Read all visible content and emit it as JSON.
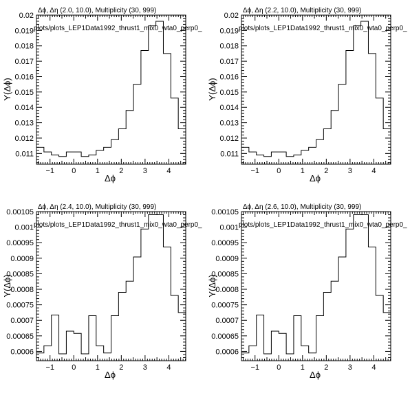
{
  "chart_data": [
    {
      "type": "line",
      "title": "Δϕ, Δη (2.0, 10.0), Multiplicity (30, 999)",
      "annotation": "plots/plots_LEP1Data1992_thrust1_mix0_wta0_perp0_",
      "xlabel": "Δϕ",
      "ylabel": "Y(Δϕ)",
      "xlim": [
        -1.571,
        4.712
      ],
      "ylim": [
        0.0103,
        0.02
      ],
      "x_ticks": [
        "−1",
        "0",
        "1",
        "2",
        "3",
        "4"
      ],
      "x_tick_values": [
        -1,
        0,
        1,
        2,
        3,
        4
      ],
      "y_ticks": [
        "0.011",
        "0.012",
        "0.013",
        "0.014",
        "0.015",
        "0.016",
        "0.017",
        "0.018",
        "0.019",
        "0.02"
      ],
      "y_tick_values": [
        0.011,
        0.012,
        0.013,
        0.014,
        0.015,
        0.016,
        0.017,
        0.018,
        0.019,
        0.02
      ],
      "bin_edges": [
        -1.571,
        -1.257,
        -0.942,
        -0.628,
        -0.314,
        0,
        0.314,
        0.628,
        0.942,
        1.257,
        1.571,
        1.885,
        2.199,
        2.513,
        2.827,
        3.142,
        3.456,
        3.77,
        4.084,
        4.398,
        4.712
      ],
      "values": [
        0.0114,
        0.0111,
        0.0109,
        0.0108,
        0.0111,
        0.0111,
        0.0108,
        0.0109,
        0.0112,
        0.0114,
        0.0119,
        0.0126,
        0.0138,
        0.0155,
        0.0177,
        0.0193,
        0.0196,
        0.0175,
        0.0146,
        0.0126
      ]
    },
    {
      "type": "line",
      "title": "Δϕ, Δη (2.2, 10.0), Multiplicity (30, 999)",
      "annotation": "plots/plots_LEP1Data1992_thrust1_mix0_wta0_perp0_",
      "xlabel": "Δϕ",
      "ylabel": "Y(Δϕ)",
      "xlim": [
        -1.571,
        4.712
      ],
      "ylim": [
        0.0103,
        0.02
      ],
      "x_ticks": [
        "−1",
        "0",
        "1",
        "2",
        "3",
        "4"
      ],
      "x_tick_values": [
        -1,
        0,
        1,
        2,
        3,
        4
      ],
      "y_ticks": [
        "0.011",
        "0.012",
        "0.013",
        "0.014",
        "0.015",
        "0.016",
        "0.017",
        "0.018",
        "0.019",
        "0.02"
      ],
      "y_tick_values": [
        0.011,
        0.012,
        0.013,
        0.014,
        0.015,
        0.016,
        0.017,
        0.018,
        0.019,
        0.02
      ],
      "bin_edges": [
        -1.571,
        -1.257,
        -0.942,
        -0.628,
        -0.314,
        0,
        0.314,
        0.628,
        0.942,
        1.257,
        1.571,
        1.885,
        2.199,
        2.513,
        2.827,
        3.142,
        3.456,
        3.77,
        4.084,
        4.398,
        4.712
      ],
      "values": [
        0.0114,
        0.0111,
        0.0109,
        0.0108,
        0.0111,
        0.0111,
        0.0108,
        0.0109,
        0.0112,
        0.0114,
        0.0119,
        0.0126,
        0.0138,
        0.0155,
        0.0177,
        0.0193,
        0.0196,
        0.0175,
        0.0146,
        0.0126
      ]
    },
    {
      "type": "line",
      "title": "Δϕ, Δη (2.4, 10.0), Multiplicity (30, 999)",
      "annotation": "plots/plots_LEP1Data1992_thrust1_mix0_wta0_perp0_",
      "xlabel": "Δϕ",
      "ylabel": "Y(Δϕ)",
      "xlim": [
        -1.571,
        4.712
      ],
      "ylim": [
        0.00057,
        0.00105
      ],
      "x_ticks": [
        "−1",
        "0",
        "1",
        "2",
        "3",
        "4"
      ],
      "x_tick_values": [
        -1,
        0,
        1,
        2,
        3,
        4
      ],
      "y_ticks": [
        "0.0006",
        "0.00065",
        "0.0007",
        "0.00075",
        "0.0008",
        "0.00085",
        "0.0009",
        "0.00095",
        "0.001",
        "0.00105"
      ],
      "y_tick_values": [
        0.0006,
        0.00065,
        0.0007,
        0.00075,
        0.0008,
        0.00085,
        0.0009,
        0.00095,
        0.001,
        0.00105
      ],
      "bin_edges": [
        -1.571,
        -1.257,
        -0.942,
        -0.628,
        -0.314,
        0,
        0.314,
        0.628,
        0.942,
        1.257,
        1.571,
        1.885,
        2.199,
        2.513,
        2.827,
        3.142,
        3.456,
        3.77,
        4.084,
        4.398,
        4.712
      ],
      "values": [
        0.000595,
        0.000618,
        0.000717,
        0.000592,
        0.000665,
        0.000658,
        0.000592,
        0.000715,
        0.000618,
        0.000595,
        0.000715,
        0.00079,
        0.000826,
        0.000904,
        0.000994,
        0.00104,
        0.00104,
        0.000936,
        0.00078,
        0.000725
      ]
    },
    {
      "type": "line",
      "title": "Δϕ, Δη (2.6, 10.0), Multiplicity (30, 999)",
      "annotation": "plots/plots_LEP1Data1992_thrust1_mix0_wta0_perp0_",
      "xlabel": "Δϕ",
      "ylabel": "Y(Δϕ)",
      "xlim": [
        -1.571,
        4.712
      ],
      "ylim": [
        0.00057,
        0.00105
      ],
      "x_ticks": [
        "−1",
        "0",
        "1",
        "2",
        "3",
        "4"
      ],
      "x_tick_values": [
        -1,
        0,
        1,
        2,
        3,
        4
      ],
      "y_ticks": [
        "0.0006",
        "0.00065",
        "0.0007",
        "0.00075",
        "0.0008",
        "0.00085",
        "0.0009",
        "0.00095",
        "0.001",
        "0.00105"
      ],
      "y_tick_values": [
        0.0006,
        0.00065,
        0.0007,
        0.00075,
        0.0008,
        0.00085,
        0.0009,
        0.00095,
        0.001,
        0.00105
      ],
      "bin_edges": [
        -1.571,
        -1.257,
        -0.942,
        -0.628,
        -0.314,
        0,
        0.314,
        0.628,
        0.942,
        1.257,
        1.571,
        1.885,
        2.199,
        2.513,
        2.827,
        3.142,
        3.456,
        3.77,
        4.084,
        4.398,
        4.712
      ],
      "values": [
        0.000595,
        0.000618,
        0.000717,
        0.000592,
        0.000665,
        0.000658,
        0.000592,
        0.000715,
        0.000618,
        0.000595,
        0.000715,
        0.00079,
        0.000826,
        0.000904,
        0.000994,
        0.00104,
        0.00104,
        0.000936,
        0.00078,
        0.000725
      ]
    }
  ],
  "colors": {
    "line": "#000000",
    "frame": "#000000",
    "background": "#ffffff"
  }
}
